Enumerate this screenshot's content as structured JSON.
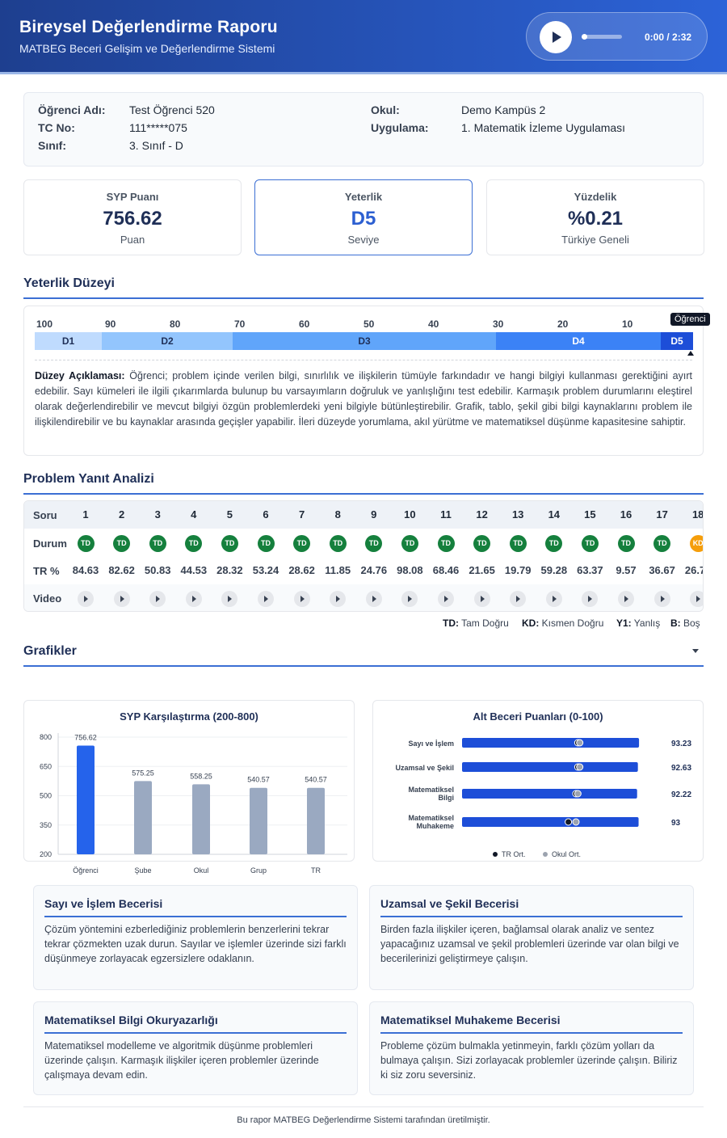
{
  "header": {
    "title": "Bireysel Değerlendirme Raporu",
    "subtitle": "MATBEG Beceri Gelişim ve Değerlendirme Sistemi",
    "audio": {
      "time": "0:00 / 2:32"
    }
  },
  "student": {
    "name_label": "Öğrenci Adı:",
    "name": "Test Öğrenci 520",
    "tc_label": "TC No:",
    "tc": "111*****075",
    "class_label": "Sınıf:",
    "class": "3. Sınıf - D",
    "school_label": "Okul:",
    "school": "Demo Kampüs 2",
    "app_label": "Uygulama:",
    "app": "1. Matematik İzleme Uygulaması"
  },
  "stats": [
    {
      "title": "SYP Puanı",
      "value": "756.62",
      "sub": "Puan"
    },
    {
      "title": "Yeterlik",
      "value": "D5",
      "sub": "Seviye"
    },
    {
      "title": "Yüzdelik",
      "value": "%0.21",
      "sub": "Türkiye Geneli"
    }
  ],
  "level": {
    "section_title": "Yeterlik Düzeyi",
    "ticks": [
      "100",
      "90",
      "80",
      "70",
      "60",
      "50",
      "40",
      "30",
      "20",
      "10"
    ],
    "segments": [
      {
        "label": "D1",
        "color": "#bfdbfe"
      },
      {
        "label": "D2",
        "color": "#93c5fd"
      },
      {
        "label": "D3",
        "color": "#60a5fa"
      },
      {
        "label": "D4",
        "color": "#3b82f6"
      },
      {
        "label": "D5",
        "color": "#1d4ed8"
      }
    ],
    "badge": "Öğrenci",
    "desc_label": "Düzey Açıklaması:",
    "desc_text": " Öğrenci; problem içinde verilen bilgi, sınırlılık ve ilişkilerin tümüyle farkındadır ve hangi bilgiyi kullanması gerektiğini ayırt edebilir. Sayı kümeleri ile ilgili çıkarımlarda bulunup bu varsayımların doğruluk ve yanlışlığını test edebilir. Karmaşık problem durumlarını eleştirel olarak değerlendirebilir ve mevcut bilgiyi özgün problemlerdeki yeni bilgiyle bütünleştirebilir. Grafik, tablo, şekil gibi bilgi kaynaklarını problem ile ilişkilendirebilir ve bu kaynaklar arasında geçişler yapabilir. İleri düzeyde yorumlama, akıl yürütme ve matematiksel düşünme kapasitesine sahiptir."
  },
  "problems": {
    "section_title": "Problem Yanıt Analizi",
    "row_labels": {
      "q": "Soru",
      "status": "Durum",
      "tr": "TR %",
      "video": "Video"
    },
    "questions": [
      "1",
      "2",
      "3",
      "4",
      "5",
      "6",
      "7",
      "8",
      "9",
      "10",
      "11",
      "12",
      "13",
      "14",
      "15",
      "16",
      "17",
      "18"
    ],
    "statuses": [
      "TD",
      "TD",
      "TD",
      "TD",
      "TD",
      "TD",
      "TD",
      "TD",
      "TD",
      "TD",
      "TD",
      "TD",
      "TD",
      "TD",
      "TD",
      "TD",
      "TD",
      "KD"
    ],
    "tr": [
      "84.63",
      "82.62",
      "50.83",
      "44.53",
      "28.32",
      "53.24",
      "28.62",
      "11.85",
      "24.76",
      "98.08",
      "68.46",
      "21.65",
      "19.79",
      "59.28",
      "63.37",
      "9.57",
      "36.67",
      "26.70"
    ],
    "legend": [
      {
        "code": "TD:",
        "text": " Tam Doğru"
      },
      {
        "code": "KD:",
        "text": " Kısmen Doğru"
      },
      {
        "code": "Y1:",
        "text": " Yanlış"
      },
      {
        "code": "B:",
        "text": " Boş"
      }
    ]
  },
  "charts": {
    "section_title": "Grafikler"
  },
  "chart_data": [
    {
      "type": "bar",
      "title": "SYP Karşılaştırma (200-800)",
      "categories": [
        "Öğrenci",
        "Şube",
        "Okul",
        "Grup",
        "TR"
      ],
      "values": [
        756.62,
        575.25,
        558.25,
        540.57,
        540.57
      ],
      "ylim": [
        200,
        800
      ],
      "yticks": [
        800,
        650,
        500,
        350,
        200
      ],
      "colors": [
        "#2563eb",
        "#9aa9c1",
        "#9aa9c1",
        "#9aa9c1",
        "#9aa9c1"
      ]
    },
    {
      "type": "bar",
      "orientation": "horizontal",
      "title": "Alt Beceri Puanları (0-100)",
      "categories": [
        "Sayı ve İşlem",
        "Uzamsal ve Şekil",
        "Matematiksel Bilgi",
        "Matematiksel Muhakeme"
      ],
      "values": [
        93.23,
        92.63,
        92.22,
        93.0
      ],
      "tr_avg": [
        61,
        61,
        60,
        56
      ],
      "school_avg": [
        62,
        62,
        61,
        60
      ],
      "xlim": [
        0,
        100
      ],
      "legend": [
        "TR Ort.",
        "Okul Ort."
      ],
      "colors": {
        "bar": "#1d4ed8",
        "tr": "#111827",
        "school": "#9ca3af"
      }
    }
  ],
  "advice": [
    {
      "title": "Sayı ve İşlem Becerisi",
      "body": "Çözüm yöntemini ezberlediğiniz problemlerin benzerlerini tekrar tekrar çözmekten uzak durun. Sayılar ve işlemler üzerinde sizi farklı düşünmeye zorlayacak egzersizlere odaklanın."
    },
    {
      "title": "Uzamsal ve Şekil Becerisi",
      "body": "Birden fazla ilişkiler içeren, bağlamsal olarak analiz ve sentez yapacağınız uzamsal ve şekil problemleri üzerinde var olan bilgi ve becerilerinizi geliştirmeye çalışın."
    },
    {
      "title": "Matematiksel Bilgi Okuryazarlığı",
      "body": "Matematiksel modelleme ve algoritmik düşünme problemleri üzerinde çalışın. Karmaşık ilişkiler içeren problemler üzerinde çalışmaya devam edin."
    },
    {
      "title": "Matematiksel Muhakeme Becerisi",
      "body": "Probleme çözüm bulmakla yetinmeyin, farklı çözüm yolları da bulmaya çalışın. Sizi zorlayacak problemler üzerinde çalışın. Biliriz ki siz zoru seversiniz."
    }
  ],
  "footer": "Bu rapor MATBEG Değerlendirme Sistemi tarafından üretilmiştir."
}
